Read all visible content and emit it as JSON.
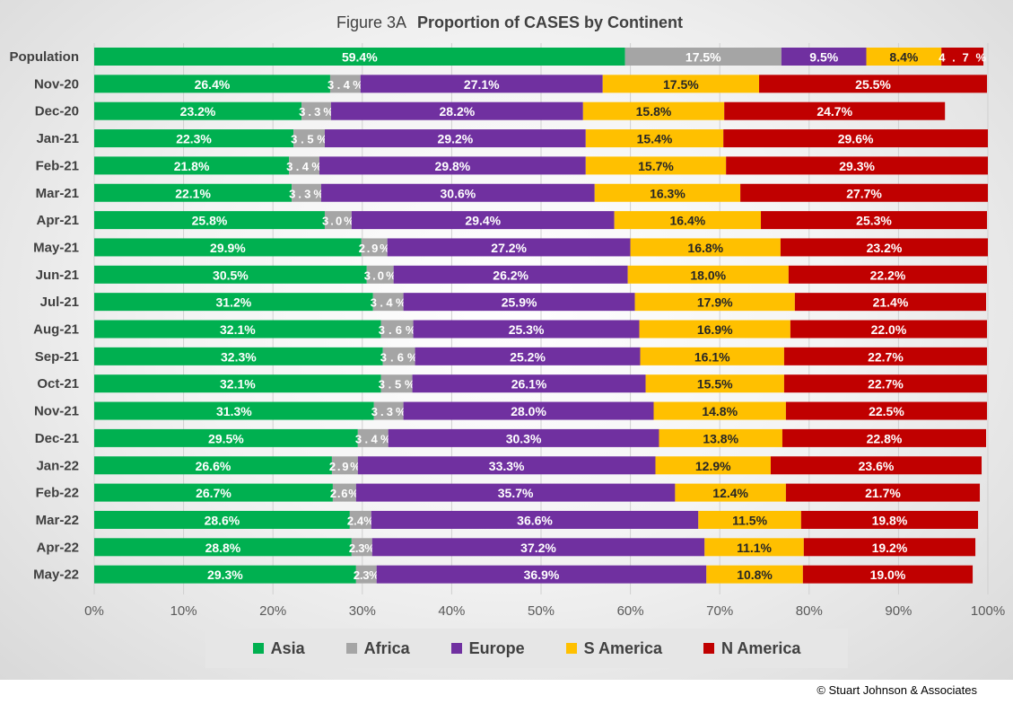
{
  "chart_data": {
    "type": "bar",
    "orientation": "horizontal",
    "stacked": "percent",
    "title_prefix": "Figure  3A",
    "title": "Proportion of CASES by Continent",
    "categories": [
      "Population",
      "Nov-20",
      "Dec-20",
      "Jan-21",
      "Feb-21",
      "Mar-21",
      "Apr-21",
      "May-21",
      "Jun-21",
      "Jul-21",
      "Aug-21",
      "Sep-21",
      "Oct-21",
      "Nov-21",
      "Dec-21",
      "Jan-22",
      "Feb-22",
      "Mar-22",
      "Apr-22",
      "May-22"
    ],
    "series": [
      {
        "name": "Asia",
        "color": "#00b050",
        "values": [
          59.4,
          26.4,
          23.2,
          22.3,
          21.8,
          22.1,
          25.8,
          29.9,
          30.5,
          31.2,
          32.1,
          32.3,
          32.1,
          31.3,
          29.5,
          26.6,
          26.7,
          28.6,
          28.8,
          29.3
        ]
      },
      {
        "name": "Africa",
        "color": "#a5a5a5",
        "values": [
          17.5,
          3.4,
          3.3,
          3.5,
          3.4,
          3.3,
          3.0,
          2.9,
          3.0,
          3.4,
          3.6,
          3.6,
          3.5,
          3.3,
          3.4,
          2.9,
          2.6,
          2.4,
          2.3,
          2.3
        ]
      },
      {
        "name": "Europe",
        "color": "#7030a0",
        "values": [
          9.5,
          27.1,
          28.2,
          29.2,
          29.8,
          30.6,
          29.4,
          27.2,
          26.2,
          25.9,
          25.3,
          25.2,
          26.1,
          28.0,
          30.3,
          33.3,
          35.7,
          36.6,
          37.2,
          36.9
        ]
      },
      {
        "name": "S America",
        "color": "#ffc000",
        "values": [
          8.4,
          17.5,
          15.8,
          15.4,
          15.7,
          16.3,
          16.4,
          16.8,
          18.0,
          17.9,
          16.9,
          16.1,
          15.5,
          14.8,
          13.8,
          12.9,
          12.4,
          11.5,
          11.1,
          10.8
        ]
      },
      {
        "name": "N America",
        "color": "#c00000",
        "values": [
          4.7,
          25.5,
          24.7,
          29.6,
          29.3,
          27.7,
          25.3,
          23.2,
          22.2,
          21.4,
          22.0,
          22.7,
          22.7,
          22.5,
          22.8,
          23.6,
          21.7,
          19.8,
          19.2,
          19.0
        ]
      }
    ],
    "xlim": [
      0,
      100
    ],
    "x_ticks": [
      "0%",
      "10%",
      "20%",
      "30%",
      "40%",
      "50%",
      "60%",
      "70%",
      "80%",
      "90%",
      "100%"
    ],
    "grid": true,
    "legend_position": "bottom",
    "label_color_dark_series": "S America"
  },
  "footer": {
    "copyright": "© Stuart Johnson & Associates"
  }
}
